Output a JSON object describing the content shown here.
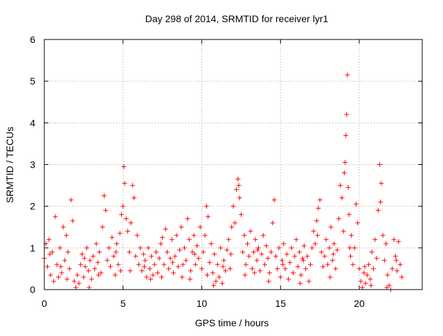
{
  "chart_data": {
    "type": "scatter",
    "title": "Day 298 of 2014, SRMTID for receiver lyr1",
    "xlabel": "GPS time / hours",
    "ylabel": "SRMTID / TECUs",
    "xlim": [
      0,
      24
    ],
    "ylim": [
      0,
      6
    ],
    "xticks": [
      0,
      5,
      10,
      15,
      20
    ],
    "yticks": [
      0,
      1,
      2,
      3,
      4,
      5,
      6
    ],
    "grid": true,
    "marker": "+",
    "series": [
      {
        "name": "SRMTID",
        "color": "#ff0000",
        "points": [
          [
            0.0,
            0.75
          ],
          [
            0.1,
            1.1
          ],
          [
            0.2,
            0.55
          ],
          [
            0.3,
            1.2
          ],
          [
            0.4,
            0.35
          ],
          [
            0.5,
            0.9
          ],
          [
            0.6,
            0.2
          ],
          [
            0.7,
            1.75
          ],
          [
            0.8,
            0.6
          ],
          [
            0.9,
            0.3
          ],
          [
            1.0,
            1.0
          ],
          [
            1.1,
            0.4
          ],
          [
            1.2,
            1.5
          ],
          [
            1.3,
            0.7
          ],
          [
            1.4,
            1.3
          ],
          [
            1.5,
            0.9
          ],
          [
            1.6,
            0.5
          ],
          [
            1.7,
            2.15
          ],
          [
            1.8,
            1.65
          ],
          [
            1.9,
            0.2
          ],
          [
            2.0,
            0.05
          ],
          [
            2.1,
            0.35
          ],
          [
            2.2,
            0.15
          ],
          [
            2.3,
            0.6
          ],
          [
            2.4,
            0.85
          ],
          [
            2.5,
            0.3
          ],
          [
            2.6,
            0.55
          ],
          [
            2.7,
            1.0
          ],
          [
            2.8,
            0.45
          ],
          [
            2.9,
            0.7
          ],
          [
            3.0,
            0.25
          ],
          [
            3.1,
            0.8
          ],
          [
            3.2,
            0.5
          ],
          [
            3.3,
            1.1
          ],
          [
            3.4,
            0.65
          ],
          [
            3.5,
            0.9
          ],
          [
            3.6,
            0.4
          ],
          [
            3.7,
            1.5
          ],
          [
            3.8,
            2.25
          ],
          [
            3.9,
            1.9
          ],
          [
            4.0,
            0.7
          ],
          [
            4.1,
            1.0
          ],
          [
            4.2,
            0.55
          ],
          [
            4.3,
            1.25
          ],
          [
            4.4,
            0.8
          ],
          [
            4.5,
            0.35
          ],
          [
            4.6,
            1.1
          ],
          [
            4.7,
            0.6
          ],
          [
            4.8,
            1.35
          ],
          [
            4.9,
            1.8
          ],
          [
            5.0,
            2.0
          ],
          [
            5.05,
            2.95
          ],
          [
            5.1,
            2.55
          ],
          [
            5.2,
            1.7
          ],
          [
            5.3,
            1.4
          ],
          [
            5.4,
            0.9
          ],
          [
            5.5,
            1.6
          ],
          [
            5.6,
            2.5
          ],
          [
            5.7,
            2.2
          ],
          [
            5.8,
            0.8
          ],
          [
            5.9,
            1.3
          ],
          [
            6.0,
            0.6
          ],
          [
            6.1,
            1.0
          ],
          [
            6.2,
            0.45
          ],
          [
            6.3,
            0.85
          ],
          [
            6.4,
            0.7
          ],
          [
            6.5,
            0.3
          ],
          [
            6.6,
            1.0
          ],
          [
            6.7,
            0.5
          ],
          [
            6.8,
            0.8
          ],
          [
            6.9,
            0.35
          ],
          [
            7.0,
            0.6
          ],
          [
            7.1,
            0.9
          ],
          [
            7.2,
            0.4
          ],
          [
            7.3,
            0.75
          ],
          [
            7.4,
            1.1
          ],
          [
            7.5,
            1.25
          ],
          [
            7.6,
            0.6
          ],
          [
            7.7,
            1.45
          ],
          [
            7.8,
            0.9
          ],
          [
            7.9,
            0.5
          ],
          [
            8.0,
            0.75
          ],
          [
            8.1,
            1.2
          ],
          [
            8.2,
            0.4
          ],
          [
            8.3,
            0.8
          ],
          [
            8.4,
            1.3
          ],
          [
            8.5,
            0.55
          ],
          [
            8.6,
            0.95
          ],
          [
            8.7,
            1.5
          ],
          [
            8.8,
            0.6
          ],
          [
            8.9,
            1.0
          ],
          [
            9.0,
            0.7
          ],
          [
            9.1,
            1.7
          ],
          [
            9.2,
            1.2
          ],
          [
            9.3,
            0.45
          ],
          [
            9.4,
            0.9
          ],
          [
            9.5,
            1.3
          ],
          [
            9.6,
            0.6
          ],
          [
            9.7,
            1.05
          ],
          [
            9.8,
            0.75
          ],
          [
            9.9,
            1.5
          ],
          [
            10.0,
            0.5
          ],
          [
            10.1,
            0.9
          ],
          [
            10.2,
            1.3
          ],
          [
            10.3,
            2.0
          ],
          [
            10.4,
            1.75
          ],
          [
            10.5,
            0.65
          ],
          [
            10.6,
            1.1
          ],
          [
            10.7,
            0.4
          ],
          [
            10.8,
            0.85
          ],
          [
            10.9,
            0.2
          ],
          [
            11.0,
            0.6
          ],
          [
            11.1,
            0.3
          ],
          [
            11.2,
            1.0
          ],
          [
            11.3,
            0.15
          ],
          [
            11.4,
            0.7
          ],
          [
            11.5,
            0.45
          ],
          [
            11.6,
            0.95
          ],
          [
            11.7,
            1.2
          ],
          [
            11.8,
            0.5
          ],
          [
            11.9,
            1.5
          ],
          [
            12.0,
            2.0
          ],
          [
            12.1,
            1.6
          ],
          [
            12.2,
            2.4
          ],
          [
            12.3,
            2.65
          ],
          [
            12.4,
            2.2
          ],
          [
            12.5,
            1.8
          ],
          [
            12.6,
            0.9
          ],
          [
            12.7,
            1.3
          ],
          [
            12.8,
            0.6
          ],
          [
            12.9,
            1.1
          ],
          [
            13.0,
            0.8
          ],
          [
            13.1,
            1.4
          ],
          [
            13.2,
            0.5
          ],
          [
            13.3,
            0.9
          ],
          [
            13.4,
            1.2
          ],
          [
            13.5,
            0.7
          ],
          [
            13.6,
            1.0
          ],
          [
            13.7,
            0.45
          ],
          [
            13.8,
            0.85
          ],
          [
            13.9,
            1.3
          ],
          [
            14.0,
            0.6
          ],
          [
            14.1,
            1.05
          ],
          [
            14.2,
            0.75
          ],
          [
            14.3,
            0.4
          ],
          [
            14.4,
            0.9
          ],
          [
            14.5,
            1.6
          ],
          [
            14.6,
            2.15
          ],
          [
            14.7,
            0.8
          ],
          [
            14.8,
            0.5
          ],
          [
            14.9,
            1.0
          ],
          [
            15.0,
            0.3
          ],
          [
            15.1,
            0.7
          ],
          [
            15.2,
            1.1
          ],
          [
            15.3,
            0.5
          ],
          [
            15.4,
            0.85
          ],
          [
            15.5,
            0.25
          ],
          [
            15.6,
            0.65
          ],
          [
            15.7,
            1.0
          ],
          [
            15.8,
            0.4
          ],
          [
            15.9,
            0.8
          ],
          [
            16.0,
            1.2
          ],
          [
            16.1,
            0.55
          ],
          [
            16.2,
            0.9
          ],
          [
            16.3,
            0.35
          ],
          [
            16.4,
            0.75
          ],
          [
            16.5,
            1.05
          ],
          [
            16.6,
            0.5
          ],
          [
            16.7,
            0.8
          ],
          [
            16.8,
            0.2
          ],
          [
            16.9,
            0.6
          ],
          [
            17.0,
            1.0
          ],
          [
            17.1,
            1.4
          ],
          [
            17.2,
            1.1
          ],
          [
            17.3,
            1.65
          ],
          [
            17.4,
            1.95
          ],
          [
            17.5,
            2.15
          ],
          [
            17.6,
            0.9
          ],
          [
            17.7,
            0.55
          ],
          [
            17.8,
            0.8
          ],
          [
            17.9,
            1.2
          ],
          [
            18.0,
            0.6
          ],
          [
            18.1,
            1.0
          ],
          [
            18.2,
            1.5
          ],
          [
            18.3,
            0.7
          ],
          [
            18.4,
            1.1
          ],
          [
            18.5,
            0.5
          ],
          [
            18.6,
            0.95
          ],
          [
            18.7,
            1.7
          ],
          [
            18.8,
            2.5
          ],
          [
            18.9,
            2.2
          ],
          [
            19.0,
            1.4
          ],
          [
            19.05,
            2.8
          ],
          [
            19.1,
            3.05
          ],
          [
            19.15,
            3.7
          ],
          [
            19.2,
            4.2
          ],
          [
            19.25,
            5.15
          ],
          [
            19.3,
            2.45
          ],
          [
            19.35,
            1.8
          ],
          [
            19.4,
            1.0
          ],
          [
            19.5,
            1.3
          ],
          [
            19.6,
            0.6
          ],
          [
            19.7,
            1.0
          ],
          [
            19.8,
            2.05
          ],
          [
            19.9,
            1.6
          ],
          [
            20.0,
            0.5
          ],
          [
            20.1,
            0.2
          ],
          [
            20.2,
            0.05
          ],
          [
            20.3,
            0.4
          ],
          [
            20.4,
            0.15
          ],
          [
            20.5,
            0.35
          ],
          [
            20.6,
            0.6
          ],
          [
            20.7,
            0.25
          ],
          [
            20.8,
            0.9
          ],
          [
            20.9,
            0.5
          ],
          [
            21.0,
            1.2
          ],
          [
            21.1,
            0.75
          ],
          [
            21.2,
            1.9
          ],
          [
            21.3,
            3.0
          ],
          [
            21.4,
            2.55
          ],
          [
            21.5,
            1.3
          ],
          [
            21.6,
            0.7
          ],
          [
            21.7,
            1.1
          ],
          [
            21.8,
            0.35
          ],
          [
            21.9,
            0.1
          ],
          [
            22.0,
            0.0
          ],
          [
            22.1,
            0.5
          ],
          [
            22.2,
            1.2
          ],
          [
            22.3,
            0.8
          ],
          [
            22.4,
            0.45
          ],
          [
            22.5,
            1.15
          ],
          [
            22.6,
            0.6
          ],
          [
            22.7,
            0.3
          ],
          [
            0.35,
            0.85
          ],
          [
            1.05,
            0.55
          ],
          [
            2.55,
            0.75
          ],
          [
            4.55,
            0.9
          ],
          [
            6.35,
            0.55
          ],
          [
            8.15,
            0.65
          ],
          [
            9.55,
            0.85
          ],
          [
            11.35,
            0.55
          ],
          [
            12.35,
            2.5
          ],
          [
            13.55,
            0.95
          ],
          [
            15.15,
            0.6
          ],
          [
            16.45,
            0.7
          ],
          [
            17.35,
            1.3
          ],
          [
            18.35,
            0.85
          ],
          [
            19.45,
            0.8
          ],
          [
            20.35,
            0.55
          ],
          [
            21.35,
            2.1
          ],
          [
            22.35,
            0.7
          ],
          [
            3.45,
            0.35
          ],
          [
            5.45,
            0.45
          ],
          [
            7.45,
            0.3
          ],
          [
            9.25,
            0.25
          ],
          [
            10.75,
            0.1
          ],
          [
            12.75,
            0.35
          ],
          [
            14.25,
            0.2
          ],
          [
            16.25,
            0.15
          ],
          [
            18.15,
            0.3
          ],
          [
            20.75,
            0.1
          ],
          [
            21.75,
            0.05
          ],
          [
            1.45,
            0.25
          ],
          [
            2.85,
            0.05
          ],
          [
            4.85,
            0.45
          ],
          [
            6.75,
            0.25
          ],
          [
            8.75,
            0.3
          ],
          [
            10.35,
            0.35
          ],
          [
            11.85,
            0.85
          ],
          [
            13.35,
            0.4
          ]
        ]
      }
    ]
  }
}
